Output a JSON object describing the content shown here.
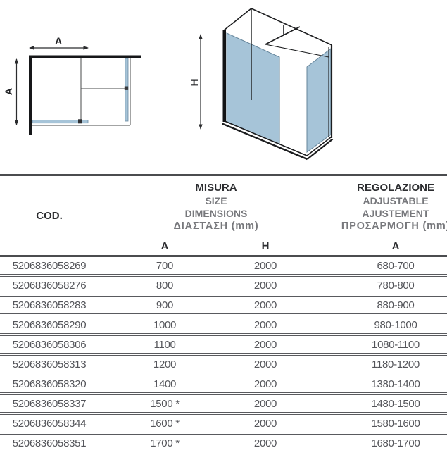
{
  "diagrams": {
    "glass_color": "#a6c4d8",
    "glass_edge_color": "#6a8aa0",
    "plan": {
      "width_label": "A",
      "depth_label": "A"
    },
    "iso": {
      "height_label": "H"
    }
  },
  "table": {
    "cod_header": "COD.",
    "size_header": {
      "line1": "MISURA",
      "line2": "SIZE",
      "line3": "DIMENSIONS",
      "line4": "ΔΙΑΣΤΑΣΗ (mm)"
    },
    "adjust_header": {
      "line1": "REGOLAZIONE",
      "line2": "ADJUSTABLE",
      "line3": "AJUSTEMENT",
      "line4": "ΠΡΟΣΑΡΜΟΓΗ (mm)"
    },
    "sub_headers": {
      "size_a": "A",
      "size_h": "H",
      "adjust_a": "A"
    },
    "rows": [
      {
        "cod": "5206836058269",
        "a": "700",
        "h": "2000",
        "reg": "680-700"
      },
      {
        "cod": "5206836058276",
        "a": "800",
        "h": "2000",
        "reg": "780-800"
      },
      {
        "cod": "5206836058283",
        "a": "900",
        "h": "2000",
        "reg": "880-900"
      },
      {
        "cod": "5206836058290",
        "a": "1000",
        "h": "2000",
        "reg": "980-1000"
      },
      {
        "cod": "5206836058306",
        "a": "1100",
        "h": "2000",
        "reg": "1080-1100"
      },
      {
        "cod": "5206836058313",
        "a": "1200",
        "h": "2000",
        "reg": "1180-1200"
      },
      {
        "cod": "5206836058320",
        "a": "1400",
        "h": "2000",
        "reg": "1380-1400"
      },
      {
        "cod": "5206836058337",
        "a": "1500 *",
        "h": "2000",
        "reg": "1480-1500"
      },
      {
        "cod": "5206836058344",
        "a": "1600 *",
        "h": "2000",
        "reg": "1580-1600"
      },
      {
        "cod": "5206836058351",
        "a": "1700 *",
        "h": "2000",
        "reg": "1680-1700"
      }
    ]
  }
}
